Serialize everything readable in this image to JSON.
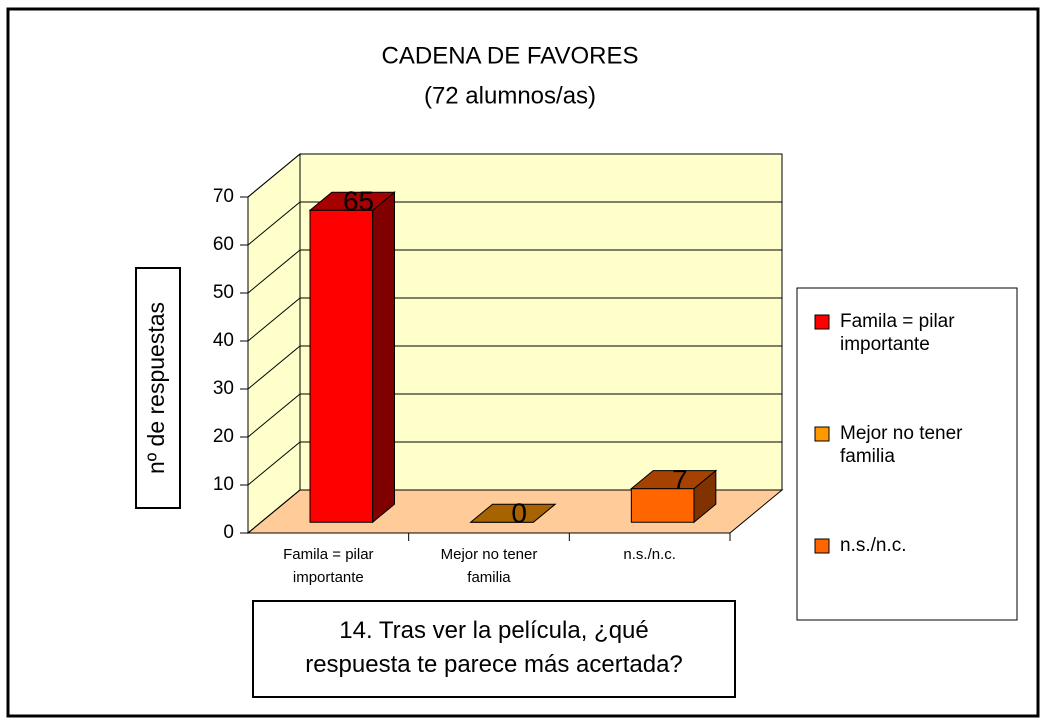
{
  "chart_data": {
    "type": "bar3d",
    "title": "CADENA DE FAVORES",
    "subtitle": "(72 alumnos/as)",
    "ylabel": "nº de respuestas",
    "categories": [
      "Famila = pilar importante",
      "Mejor no tener familia",
      "n.s./n.c."
    ],
    "values": [
      65,
      0,
      7
    ],
    "colors": [
      "#ff0000",
      "#ff9900",
      "#ff6600"
    ],
    "ylim": [
      0,
      70
    ],
    "yticks": [
      0,
      10,
      20,
      30,
      40,
      50,
      60,
      70
    ],
    "grid": true,
    "legend": "right",
    "annotation": "14. Tras ver la película, ¿qué respuesta te parece más acertada?"
  }
}
